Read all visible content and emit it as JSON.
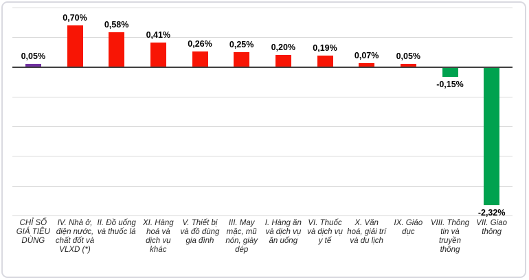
{
  "chart_data": {
    "type": "bar",
    "title": "",
    "xlabel": "",
    "ylabel": "",
    "unit": "%",
    "decimal_separator": ",",
    "ylim": [
      -2.5,
      1.0
    ],
    "grid_step": 0.5,
    "grid": true,
    "legend": false,
    "categories": [
      "CHỈ SỐ GIÁ TIÊU DÙNG",
      "IV. Nhà ở, điện nước, chất đốt và VLXD (*)",
      "II. Đồ uống và thuốc lá",
      "XI. Hàng hoá và dịch vụ khác",
      "V. Thiết bị và đồ dùng gia đình",
      "III. May mặc, mũ nón, giày dép",
      "I. Hàng ăn và dịch vụ ăn uống",
      "VI. Thuốc và dịch vụ y tế",
      "X. Văn hoá, giải trí và du lịch",
      "IX. Giáo dục",
      "VIII. Thông tin và truyền thông",
      "VII. Giao thông"
    ],
    "values": [
      0.05,
      0.7,
      0.58,
      0.41,
      0.26,
      0.25,
      0.2,
      0.19,
      0.07,
      0.05,
      -0.15,
      -2.32
    ],
    "value_labels": [
      "0,05%",
      "0,70%",
      "0,58%",
      "0,41%",
      "0,26%",
      "0,25%",
      "0,20%",
      "0,19%",
      "0,07%",
      "0,05%",
      "-0,15%",
      "-2,32%"
    ],
    "bar_colors": [
      "#7030a0",
      "#f81505",
      "#f81505",
      "#f81505",
      "#f81505",
      "#f81505",
      "#f81505",
      "#f81505",
      "#f81505",
      "#f81505",
      "#00a24f",
      "#00a24f"
    ],
    "colors": {
      "purple": "#7030a0",
      "red": "#f81505",
      "green": "#00a24f",
      "axis": "#3f3f3f",
      "grid": "#d9d9d9",
      "category_text": "#262626",
      "value_text": "#000000",
      "frame_border": "#d9d9e0"
    }
  }
}
